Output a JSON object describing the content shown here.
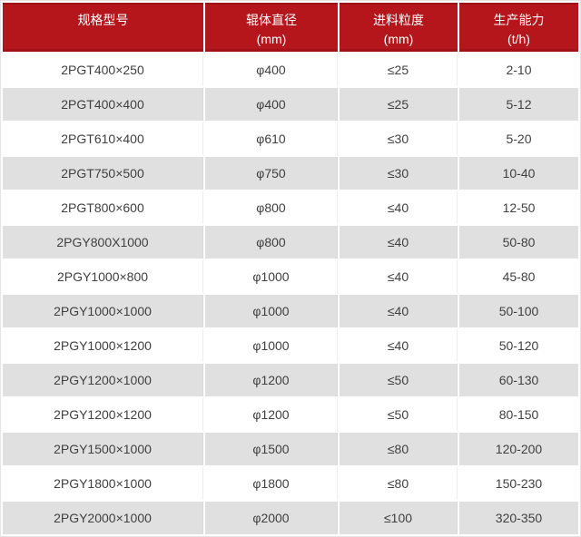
{
  "table": {
    "headers": [
      {
        "line1": "规格型号",
        "line2": ""
      },
      {
        "line1": "辊体直径",
        "line2": "(mm)"
      },
      {
        "line1": "进料粒度",
        "line2": "(mm)"
      },
      {
        "line1": "生产能力",
        "line2": "(t/h)"
      }
    ],
    "rows": [
      [
        "2PGT400×250",
        "φ400",
        "≤25",
        "2-10"
      ],
      [
        "2PGT400×400",
        "φ400",
        "≤25",
        "5-12"
      ],
      [
        "2PGT610×400",
        "φ610",
        "≤30",
        "5-20"
      ],
      [
        "2PGT750×500",
        "φ750",
        "≤30",
        "10-40"
      ],
      [
        "2PGT800×600",
        "φ800",
        "≤40",
        "12-50"
      ],
      [
        "2PGY800X1000",
        "φ800",
        "≤40",
        "50-80"
      ],
      [
        "2PGY1000×800",
        "φ1000",
        "≤40",
        "45-80"
      ],
      [
        "2PGY1000×1000",
        "φ1000",
        "≤40",
        "50-100"
      ],
      [
        "2PGY1000×1200",
        "φ1000",
        "≤40",
        "50-120"
      ],
      [
        "2PGY1200×1000",
        "φ1200",
        "≤50",
        "60-130"
      ],
      [
        "2PGY1200×1200",
        "φ1200",
        "≤50",
        "80-150"
      ],
      [
        "2PGY1500×1000",
        "φ1500",
        "≤80",
        "120-200"
      ],
      [
        "2PGY1800×1000",
        "φ1800",
        "≤80",
        "150-230"
      ],
      [
        "2PGY2000×1000",
        "φ2000",
        "≤100",
        "320-350"
      ]
    ]
  },
  "colors": {
    "header_bg": "#b5161b",
    "header_edge_dark": "#9e1115",
    "row_alt_bg": "#e0e0e0",
    "body_text": "#404040",
    "outer_border": "#e4e4e4",
    "column_divider": "#ededed"
  }
}
